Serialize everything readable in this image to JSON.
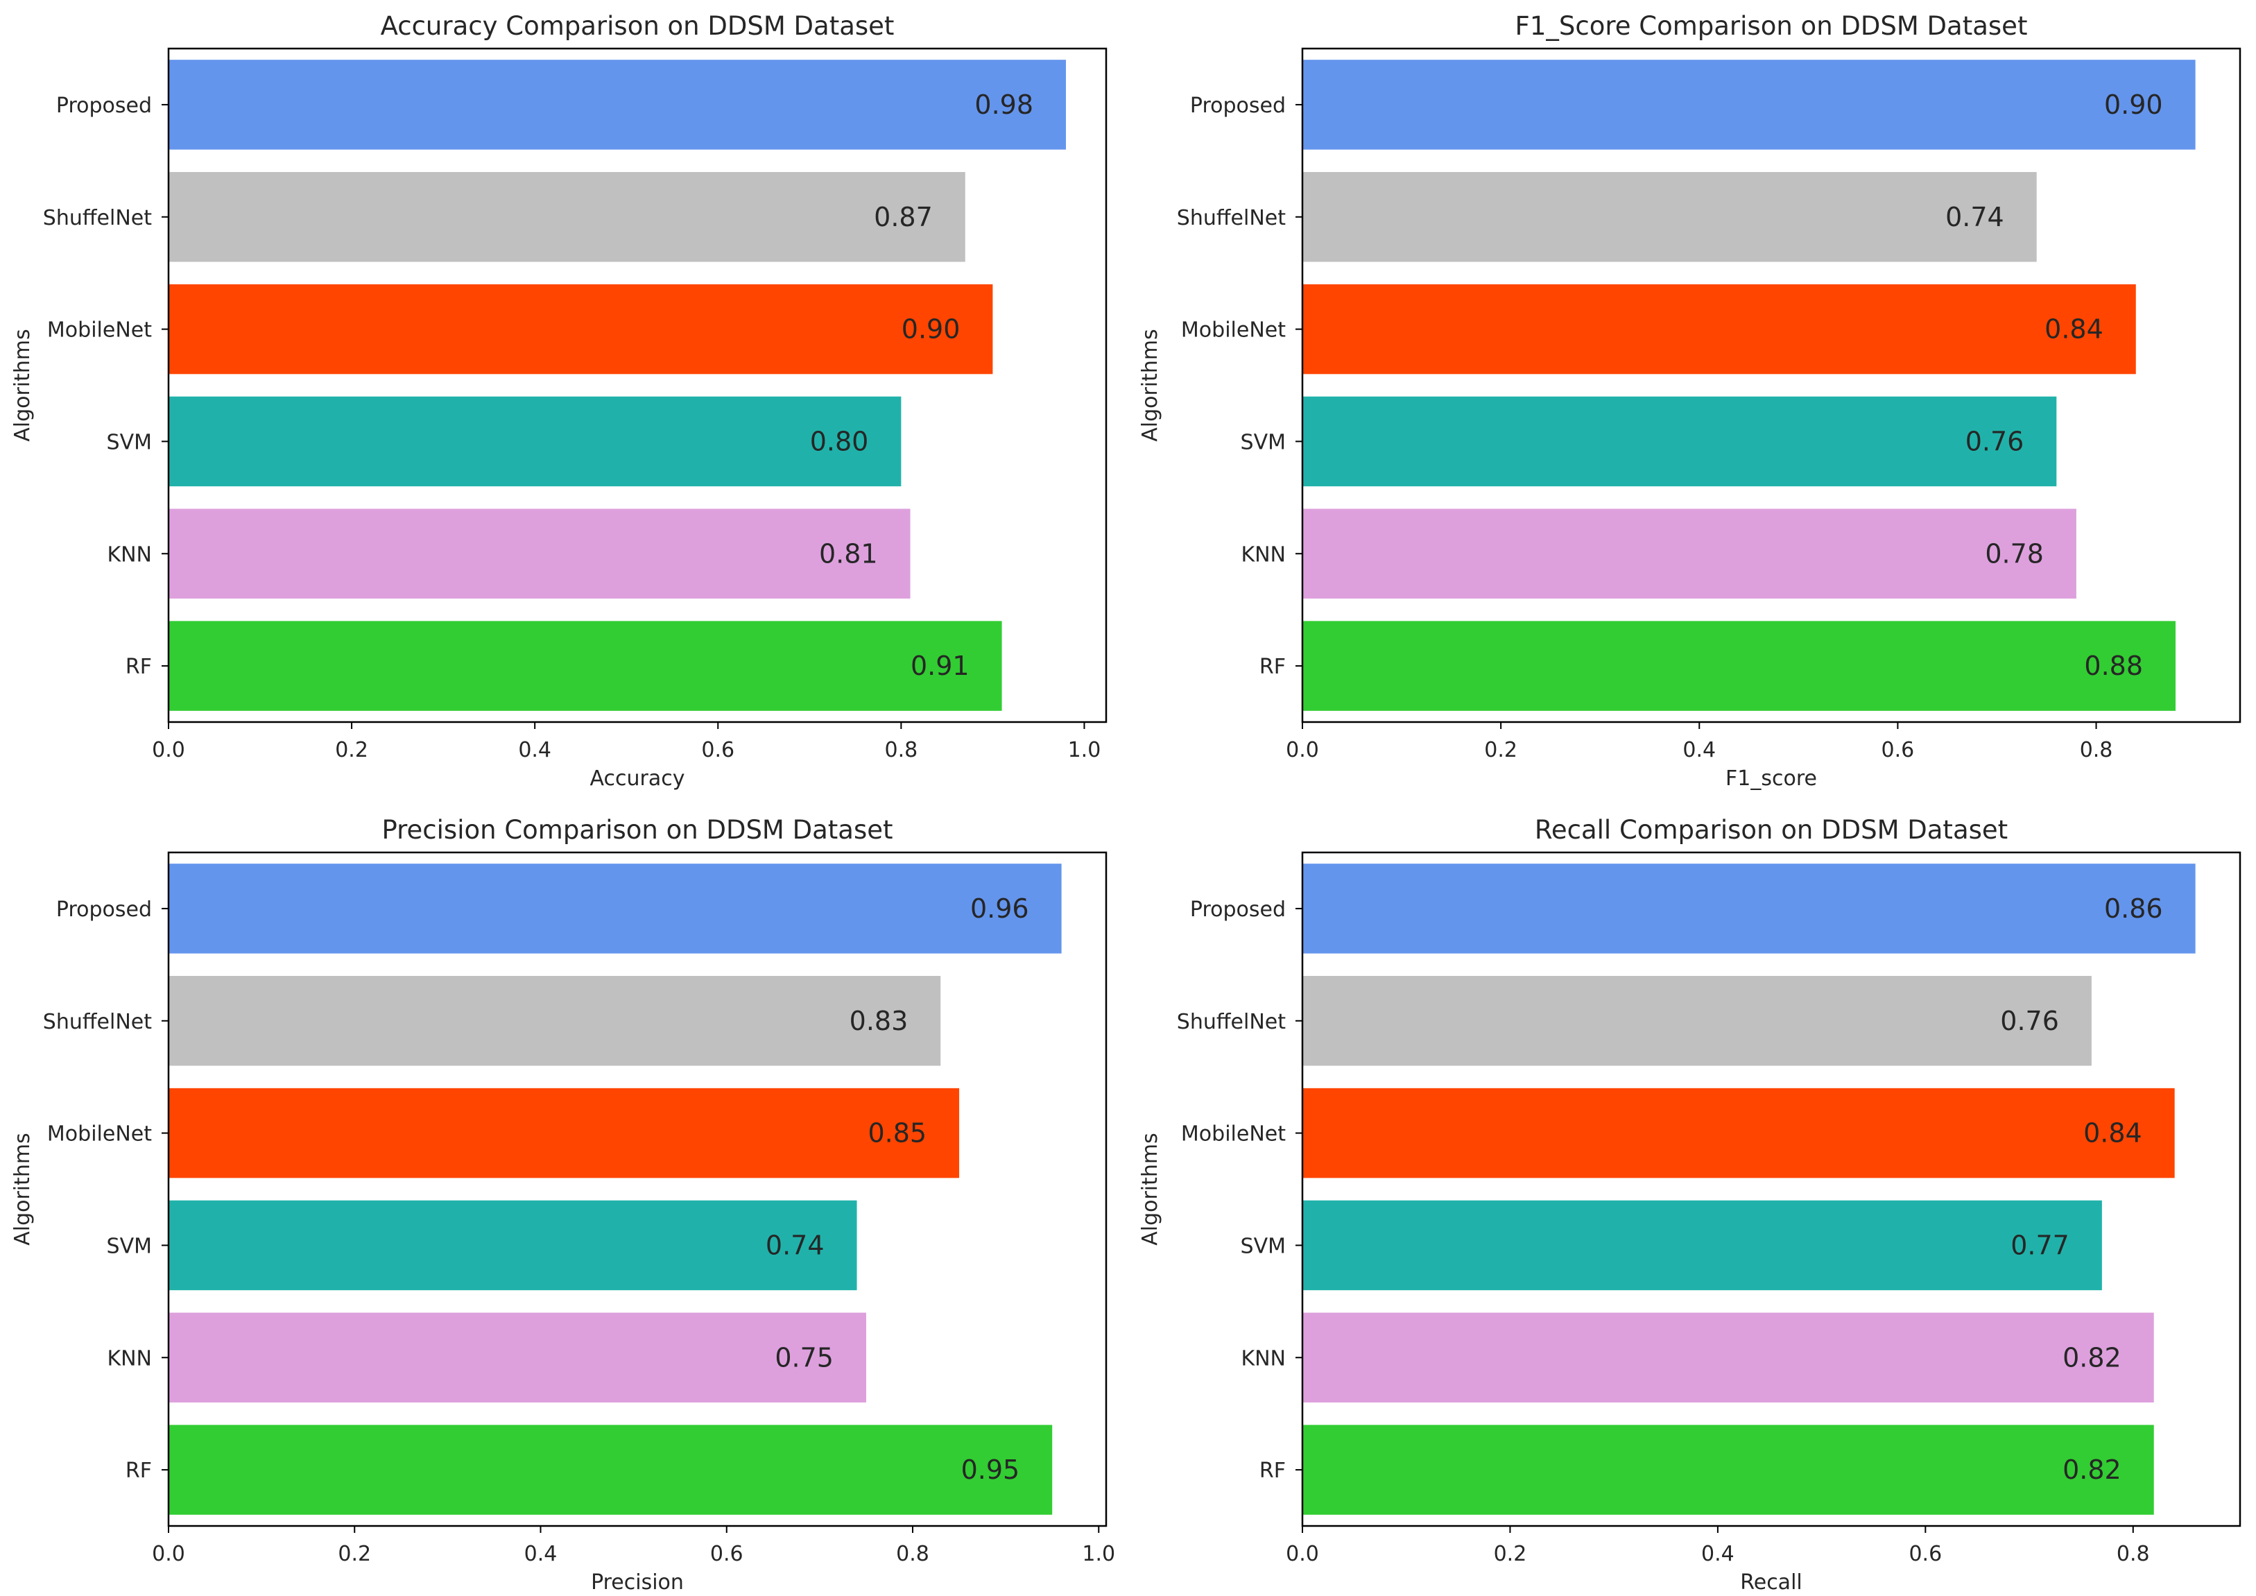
{
  "colors": {
    "Proposed": "#6495ED",
    "ShuffelNet": "#C0C0C0",
    "MobileNet": "#FF4500",
    "SVM": "#20B2AA",
    "KNN": "#DDA0DD",
    "RF": "#32CD32"
  },
  "chart_data": [
    {
      "type": "bar",
      "orientation": "horizontal",
      "title": "Accuracy Comparison on DDSM Dataset",
      "xlabel": "Accuracy",
      "ylabel": "Algorithms",
      "categories": [
        "Proposed",
        "ShuffelNet",
        "MobileNet",
        "SVM",
        "KNN",
        "RF"
      ],
      "values": [
        0.98,
        0.87,
        0.9,
        0.8,
        0.81,
        0.91
      ],
      "value_labels": [
        "0.98",
        "0.87",
        "0.90",
        "0.80",
        "0.81",
        "0.91"
      ],
      "xlim": [
        0,
        1.0239
      ],
      "xticks": [
        "0.0",
        "0.2",
        "0.4",
        "0.6",
        "0.8",
        "1.0"
      ],
      "grid": false
    },
    {
      "type": "bar",
      "orientation": "horizontal",
      "title": "F1_Score Comparison on DDSM Dataset",
      "xlabel": "F1_score",
      "ylabel": "Algorithms",
      "categories": [
        "Proposed",
        "ShuffelNet",
        "MobileNet",
        "SVM",
        "KNN",
        "RF"
      ],
      "values": [
        0.9,
        0.74,
        0.84,
        0.76,
        0.78,
        0.88
      ],
      "value_labels": [
        "0.90",
        "0.74",
        "0.84",
        "0.76",
        "0.78",
        "0.88"
      ],
      "xlim": [
        0,
        0.945
      ],
      "xticks": [
        "0.0",
        "0.2",
        "0.4",
        "0.6",
        "0.8"
      ],
      "grid": false
    },
    {
      "type": "bar",
      "orientation": "horizontal",
      "title": "Precision Comparison on DDSM Dataset",
      "xlabel": "Precision",
      "ylabel": "Algorithms",
      "categories": [
        "Proposed",
        "ShuffelNet",
        "MobileNet",
        "SVM",
        "KNN",
        "RF"
      ],
      "values": [
        0.96,
        0.83,
        0.85,
        0.74,
        0.75,
        0.95
      ],
      "value_labels": [
        "0.96",
        "0.83",
        "0.85",
        "0.74",
        "0.75",
        "0.95"
      ],
      "xlim": [
        0,
        1.008
      ],
      "xticks": [
        "0.0",
        "0.2",
        "0.4",
        "0.6",
        "0.8",
        "1.0"
      ],
      "grid": false
    },
    {
      "type": "bar",
      "orientation": "horizontal",
      "title": "Recall Comparison on DDSM Dataset",
      "xlabel": "Recall",
      "ylabel": "Algorithms",
      "categories": [
        "Proposed",
        "ShuffelNet",
        "MobileNet",
        "SVM",
        "KNN",
        "RF"
      ],
      "values": [
        0.86,
        0.76,
        0.84,
        0.77,
        0.82,
        0.82
      ],
      "value_labels": [
        "0.86",
        "0.76",
        "0.84",
        "0.77",
        "0.82",
        "0.82"
      ],
      "xlim": [
        0,
        0.903
      ],
      "xticks": [
        "0.0",
        "0.2",
        "0.4",
        "0.6",
        "0.8"
      ],
      "grid": false
    }
  ]
}
